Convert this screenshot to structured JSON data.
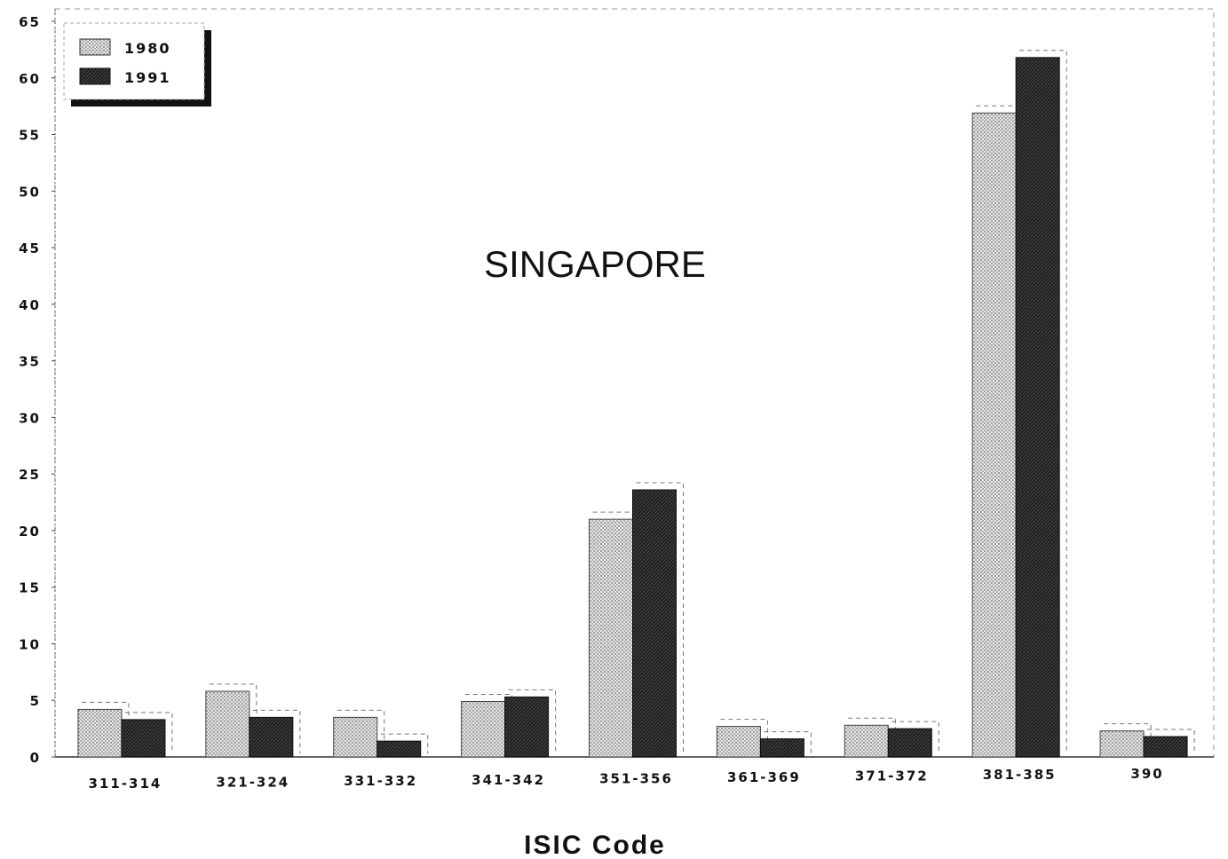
{
  "chart_data": {
    "type": "bar",
    "title": "SINGAPORE",
    "xlabel": "ISIC Code",
    "ylabel": "",
    "ylim": [
      0,
      65
    ],
    "yticks": [
      0,
      5,
      10,
      15,
      20,
      25,
      30,
      35,
      40,
      45,
      50,
      55,
      60,
      65
    ],
    "categories": [
      "311-314",
      "321-324",
      "331-332",
      "341-342",
      "351-356",
      "361-369",
      "371-372",
      "381-385",
      "390"
    ],
    "series": [
      {
        "name": "1980",
        "values": [
          4.2,
          5.8,
          3.5,
          4.9,
          21.0,
          2.7,
          2.8,
          56.9,
          2.3
        ],
        "pattern": "dotted-light"
      },
      {
        "name": "1991",
        "values": [
          3.3,
          3.5,
          1.4,
          5.3,
          23.6,
          1.6,
          2.5,
          61.8,
          1.8
        ],
        "pattern": "dark"
      }
    ],
    "legend_position": "top-left",
    "grid": false
  },
  "colors": {
    "series_1980": "#d9d9d9",
    "series_1991": "#1a1a1a",
    "axis": "#222222"
  }
}
